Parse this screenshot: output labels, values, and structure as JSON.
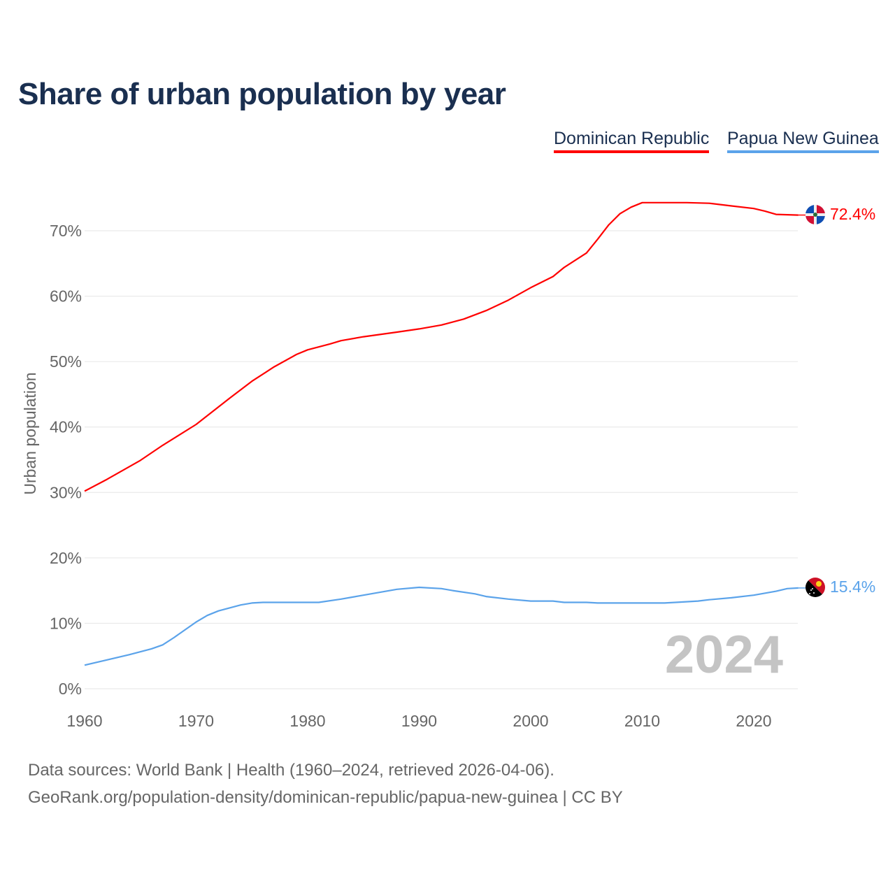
{
  "chart_data": {
    "type": "line",
    "title": "Share of urban population by year",
    "xlabel": "",
    "ylabel": "Urban population",
    "xlim": [
      1960,
      2024
    ],
    "ylim": [
      0,
      75
    ],
    "x_ticks": [
      "1960",
      "1970",
      "1980",
      "1990",
      "2000",
      "2010",
      "2020"
    ],
    "y_ticks": [
      "0%",
      "10%",
      "20%",
      "30%",
      "40%",
      "50%",
      "60%",
      "70%"
    ],
    "grid": true,
    "legend_position": "top-right",
    "year_watermark": "2024",
    "series": [
      {
        "name": "Dominican Republic",
        "color": "#ff0000",
        "end_label": "72.4%",
        "points": [
          [
            1960,
            30.2
          ],
          [
            1962,
            32.0
          ],
          [
            1965,
            34.9
          ],
          [
            1967,
            37.2
          ],
          [
            1970,
            40.4
          ],
          [
            1973,
            44.4
          ],
          [
            1975,
            47.0
          ],
          [
            1977,
            49.2
          ],
          [
            1979,
            51.1
          ],
          [
            1980,
            51.8
          ],
          [
            1982,
            52.7
          ],
          [
            1983,
            53.2
          ],
          [
            1985,
            53.8
          ],
          [
            1988,
            54.5
          ],
          [
            1990,
            55.0
          ],
          [
            1992,
            55.6
          ],
          [
            1994,
            56.5
          ],
          [
            1996,
            57.8
          ],
          [
            1998,
            59.4
          ],
          [
            2000,
            61.3
          ],
          [
            2002,
            63.0
          ],
          [
            2003,
            64.4
          ],
          [
            2005,
            66.6
          ],
          [
            2006,
            68.7
          ],
          [
            2007,
            70.9
          ],
          [
            2008,
            72.6
          ],
          [
            2009,
            73.6
          ],
          [
            2010,
            74.3
          ],
          [
            2014,
            74.3
          ],
          [
            2016,
            74.2
          ],
          [
            2018,
            73.8
          ],
          [
            2020,
            73.4
          ],
          [
            2021,
            73.0
          ],
          [
            2022,
            72.5
          ],
          [
            2024,
            72.4
          ]
        ]
      },
      {
        "name": "Papua New Guinea",
        "color": "#5ba3ea",
        "end_label": "15.4%",
        "points": [
          [
            1960,
            3.6
          ],
          [
            1962,
            4.4
          ],
          [
            1964,
            5.2
          ],
          [
            1966,
            6.1
          ],
          [
            1967,
            6.7
          ],
          [
            1968,
            7.8
          ],
          [
            1970,
            10.2
          ],
          [
            1971,
            11.2
          ],
          [
            1972,
            11.9
          ],
          [
            1974,
            12.8
          ],
          [
            1975,
            13.1
          ],
          [
            1976,
            13.2
          ],
          [
            1981,
            13.2
          ],
          [
            1983,
            13.7
          ],
          [
            1984,
            14.0
          ],
          [
            1985,
            14.3
          ],
          [
            1988,
            15.2
          ],
          [
            1990,
            15.5
          ],
          [
            1992,
            15.3
          ],
          [
            1993,
            15.0
          ],
          [
            1995,
            14.5
          ],
          [
            1996,
            14.1
          ],
          [
            1998,
            13.7
          ],
          [
            2000,
            13.4
          ],
          [
            2002,
            13.4
          ],
          [
            2003,
            13.2
          ],
          [
            2005,
            13.2
          ],
          [
            2006,
            13.1
          ],
          [
            2012,
            13.1
          ],
          [
            2013,
            13.2
          ],
          [
            2015,
            13.4
          ],
          [
            2016,
            13.6
          ],
          [
            2018,
            13.9
          ],
          [
            2020,
            14.3
          ],
          [
            2022,
            14.9
          ],
          [
            2023,
            15.3
          ],
          [
            2024,
            15.4
          ]
        ]
      }
    ]
  },
  "footer": {
    "line1": "Data sources: World Bank | Health (1960–2024, retrieved 2026-04-06).",
    "line2": "GeoRank.org/population-density/dominican-republic/papua-new-guinea | CC BY"
  }
}
